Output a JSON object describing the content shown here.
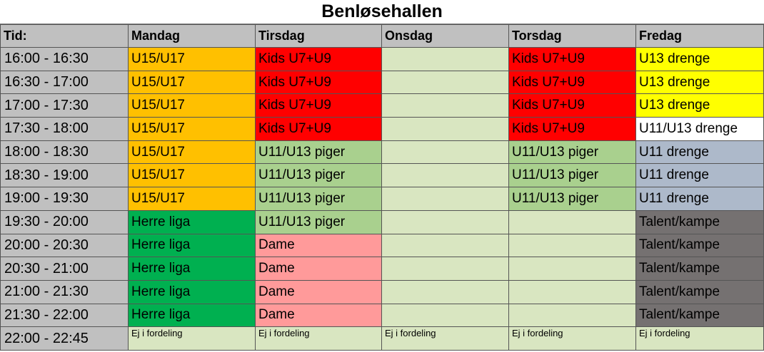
{
  "title": "Benløsehallen",
  "colors": {
    "orange": "#ffc000",
    "red": "#ff0000",
    "light_green": "#d9e6c1",
    "mid_green": "#a9d08e",
    "dark_green": "#00b050",
    "pink": "#ff9a9a",
    "yellow": "#ffff00",
    "white": "#ffffff",
    "blue_gray": "#adb9ca",
    "dark_gray": "#757171",
    "header_gray": "#c0c0c0"
  },
  "headers": [
    "Tid:",
    "Mandag",
    "Tirsdag",
    "Onsdag",
    "Torsdag",
    "Fredag"
  ],
  "rows": [
    {
      "time": "16:00 - 16:30",
      "cells": [
        {
          "text": "U15/U17",
          "color": "orange"
        },
        {
          "text": "Kids U7+U9",
          "color": "red"
        },
        {
          "text": "",
          "color": "lgreen"
        },
        {
          "text": "Kids U7+U9",
          "color": "red"
        },
        {
          "text": "U13 drenge",
          "color": "yellow"
        }
      ]
    },
    {
      "time": "16:30 - 17:00",
      "cells": [
        {
          "text": "U15/U17",
          "color": "orange"
        },
        {
          "text": "Kids U7+U9",
          "color": "red"
        },
        {
          "text": "",
          "color": "lgreen"
        },
        {
          "text": "Kids U7+U9",
          "color": "red"
        },
        {
          "text": "U13 drenge",
          "color": "yellow"
        }
      ]
    },
    {
      "time": "17:00 - 17:30",
      "cells": [
        {
          "text": "U15/U17",
          "color": "orange"
        },
        {
          "text": "Kids U7+U9",
          "color": "red"
        },
        {
          "text": "",
          "color": "lgreen"
        },
        {
          "text": "Kids U7+U9",
          "color": "red"
        },
        {
          "text": "U13 drenge",
          "color": "yellow"
        }
      ]
    },
    {
      "time": "17:30 - 18:00",
      "cells": [
        {
          "text": "U15/U17",
          "color": "orange"
        },
        {
          "text": "Kids U7+U9",
          "color": "red"
        },
        {
          "text": "",
          "color": "lgreen"
        },
        {
          "text": "Kids U7+U9",
          "color": "red"
        },
        {
          "text": "U11/U13 drenge",
          "color": "white"
        }
      ]
    },
    {
      "time": "18:00 - 18:30",
      "cells": [
        {
          "text": "U15/U17",
          "color": "orange"
        },
        {
          "text": "U11/U13 piger",
          "color": "mgreen"
        },
        {
          "text": "",
          "color": "lgreen"
        },
        {
          "text": "U11/U13 piger",
          "color": "mgreen"
        },
        {
          "text": "U11 drenge",
          "color": "blue"
        }
      ]
    },
    {
      "time": "18:30 - 19:00",
      "cells": [
        {
          "text": "U15/U17",
          "color": "orange"
        },
        {
          "text": "U11/U13 piger",
          "color": "mgreen"
        },
        {
          "text": "",
          "color": "lgreen"
        },
        {
          "text": "U11/U13 piger",
          "color": "mgreen"
        },
        {
          "text": "U11 drenge",
          "color": "blue"
        }
      ]
    },
    {
      "time": "19:00 - 19:30",
      "cells": [
        {
          "text": "U15/U17",
          "color": "orange"
        },
        {
          "text": "U11/U13 piger",
          "color": "mgreen"
        },
        {
          "text": "",
          "color": "lgreen"
        },
        {
          "text": "U11/U13 piger",
          "color": "mgreen"
        },
        {
          "text": "U11 drenge",
          "color": "blue"
        }
      ]
    },
    {
      "time": "19:30 - 20:00",
      "cells": [
        {
          "text": "Herre liga",
          "color": "dgreen"
        },
        {
          "text": "U11/U13 piger",
          "color": "mgreen"
        },
        {
          "text": "",
          "color": "lgreen"
        },
        {
          "text": "",
          "color": "lgreen"
        },
        {
          "text": "Talent/kampe",
          "color": "dgray"
        }
      ]
    },
    {
      "time": "20:00 - 20:30",
      "cells": [
        {
          "text": "Herre liga",
          "color": "dgreen"
        },
        {
          "text": "Dame",
          "color": "pink"
        },
        {
          "text": "",
          "color": "lgreen"
        },
        {
          "text": "",
          "color": "lgreen"
        },
        {
          "text": "Talent/kampe",
          "color": "dgray"
        }
      ]
    },
    {
      "time": "20:30 - 21:00",
      "cells": [
        {
          "text": "Herre liga",
          "color": "dgreen"
        },
        {
          "text": "Dame",
          "color": "pink"
        },
        {
          "text": "",
          "color": "lgreen"
        },
        {
          "text": "",
          "color": "lgreen"
        },
        {
          "text": "Talent/kampe",
          "color": "dgray"
        }
      ]
    },
    {
      "time": "21:00 - 21:30",
      "cells": [
        {
          "text": "Herre liga",
          "color": "dgreen"
        },
        {
          "text": "Dame",
          "color": "pink"
        },
        {
          "text": "",
          "color": "lgreen"
        },
        {
          "text": "",
          "color": "lgreen"
        },
        {
          "text": "Talent/kampe",
          "color": "dgray"
        }
      ]
    },
    {
      "time": "21:30 - 22:00",
      "cells": [
        {
          "text": "Herre liga",
          "color": "dgreen"
        },
        {
          "text": "Dame",
          "color": "pink"
        },
        {
          "text": "",
          "color": "lgreen"
        },
        {
          "text": "",
          "color": "lgreen"
        },
        {
          "text": "Talent/kampe",
          "color": "dgray"
        }
      ]
    },
    {
      "time": "22:00 - 22:45",
      "small": true,
      "cells": [
        {
          "text": "Ej i fordeling",
          "color": "lgreen"
        },
        {
          "text": "Ej i fordeling",
          "color": "lgreen"
        },
        {
          "text": "Ej i fordeling",
          "color": "lgreen"
        },
        {
          "text": "Ej i fordeling",
          "color": "lgreen"
        },
        {
          "text": "Ej i fordeling",
          "color": "lgreen"
        }
      ]
    }
  ]
}
